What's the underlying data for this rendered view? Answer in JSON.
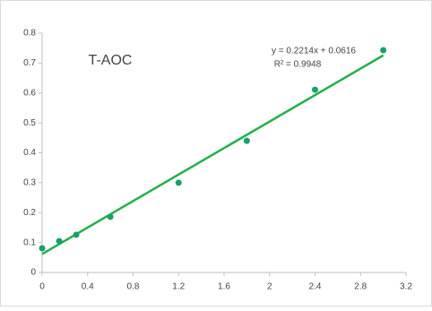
{
  "chart_data": {
    "type": "scatter",
    "title": "T-AOC",
    "x": [
      0,
      0.15,
      0.3,
      0.6,
      1.2,
      1.8,
      2.4,
      3.0
    ],
    "series": [
      {
        "color": "#1a9f6a",
        "values": [
          0.081,
          0.105,
          0.126,
          0.186,
          0.3,
          0.44,
          0.611,
          0.743
        ]
      }
    ],
    "trendline": {
      "slope": 0.2214,
      "intercept": 0.0616,
      "color": "#22b04b"
    },
    "annotations": [
      "y = 0.2214x + 0.0616",
      "R² = 0.9948"
    ],
    "xlim": [
      0,
      3.2
    ],
    "xticks": [
      0,
      0.4,
      0.8,
      1.2,
      1.6,
      2,
      2.4,
      2.8,
      3.2
    ],
    "ylim": [
      0,
      0.8
    ],
    "yticks": [
      0,
      0.1,
      0.2,
      0.3,
      0.4,
      0.5,
      0.6,
      0.7,
      0.8
    ],
    "grid": false
  }
}
